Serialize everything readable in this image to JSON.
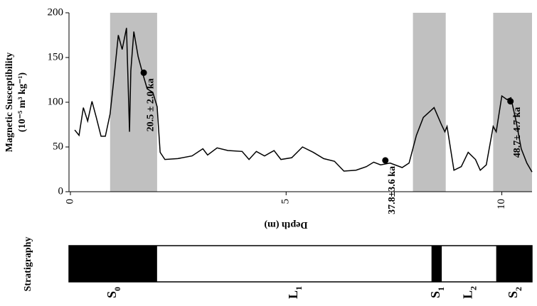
{
  "chart_data": {
    "type": "line",
    "ylabel": "Magnetic Susceptibility",
    "yunit": "(10⁻⁵ m³ kg⁻¹)",
    "xlabel": "Depth (m)",
    "x": [
      0.1,
      0.2,
      0.3,
      0.4,
      0.5,
      0.6,
      0.71,
      0.81,
      0.92,
      1.01,
      1.11,
      1.2,
      1.3,
      1.37,
      1.4,
      1.47,
      1.57,
      1.67,
      1.78,
      1.91,
      2.01,
      2.08,
      2.19,
      2.49,
      2.82,
      3.07,
      3.18,
      3.4,
      3.65,
      3.98,
      4.14,
      4.31,
      4.5,
      4.72,
      4.88,
      5.13,
      5.38,
      5.63,
      5.87,
      6.12,
      6.34,
      6.62,
      6.86,
      7.03,
      7.19,
      7.41,
      7.69,
      7.85,
      8.02,
      8.18,
      8.43,
      8.6,
      8.68,
      8.73,
      8.89,
      9.06,
      9.22,
      9.39,
      9.5,
      9.64,
      9.8,
      9.87,
      10,
      10.12,
      10.21,
      10.33,
      10.45,
      10.58,
      10.7
    ],
    "series": [
      {
        "color": "#000000",
        "values": [
          69,
          63,
          94,
          79,
          101,
          83,
          62,
          62,
          87,
          127,
          175,
          159,
          183,
          67,
          135,
          179,
          151,
          133,
          115,
          111,
          95,
          44,
          36,
          37,
          40,
          48,
          41,
          49,
          46,
          45,
          36,
          45,
          40,
          46,
          36,
          38,
          50,
          44,
          37,
          34,
          23,
          24,
          28,
          33,
          30,
          32,
          27,
          32,
          63,
          83,
          94,
          75,
          67,
          73,
          24,
          28,
          44,
          36,
          24,
          30,
          73,
          67,
          107,
          103,
          105,
          79,
          48,
          32,
          22
        ]
      }
    ],
    "shaded": [
      [
        0.92,
        2.01
      ],
      [
        7.94,
        8.7
      ],
      [
        9.8,
        10.7
      ]
    ],
    "shade_color": "#c0c0c0",
    "annotations": [
      {
        "x": 1.7,
        "y": 133,
        "text": "20.5 ± 2.0 ka"
      },
      {
        "x": 7.3,
        "y": 35,
        "text": "37.8±3.6 ka"
      },
      {
        "x": 10.2,
        "y": 101,
        "text": "48.7± 4.7 ka"
      }
    ],
    "xlim": [
      0,
      10.7
    ],
    "ylim": [
      0,
      200
    ],
    "xticks": [
      0,
      5,
      10
    ],
    "yticks": [
      0,
      50,
      100,
      150,
      200
    ],
    "stratigraphy": {
      "title": "Stratigraphy",
      "units": [
        {
          "name": "S",
          "sub": "0",
          "start": 0,
          "end": 2.01,
          "fill": "#000000"
        },
        {
          "name": "L",
          "sub": "1",
          "start": 2.01,
          "end": 8.37,
          "fill": "#ffffff"
        },
        {
          "name": "S",
          "sub": "1",
          "start": 8.37,
          "end": 8.61,
          "fill": "#000000"
        },
        {
          "name": "L",
          "sub": "2",
          "start": 8.61,
          "end": 9.87,
          "fill": "#ffffff"
        },
        {
          "name": "S",
          "sub": "2",
          "start": 9.87,
          "end": 10.7,
          "fill": "#000000"
        }
      ]
    }
  }
}
